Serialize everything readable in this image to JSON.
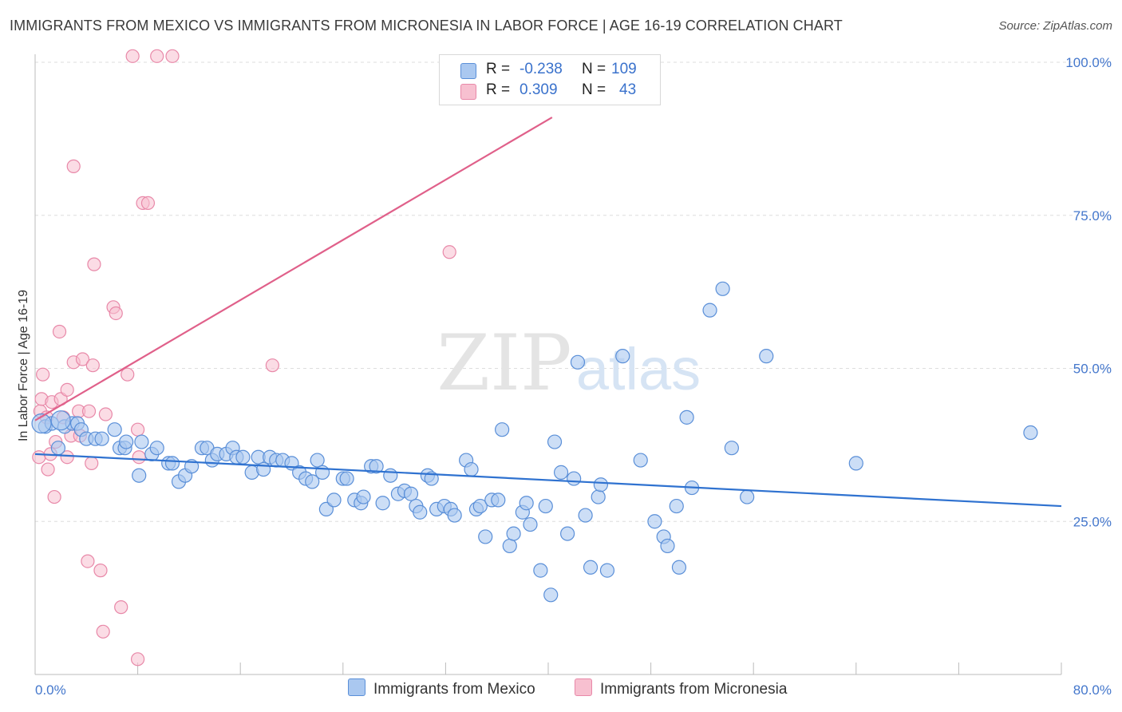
{
  "header": {
    "title": "IMMIGRANTS FROM MEXICO VS IMMIGRANTS FROM MICRONESIA IN LABOR FORCE | AGE 16-19 CORRELATION CHART",
    "source": "Source: ZipAtlas.com"
  },
  "watermark": {
    "zip": "ZIP",
    "atlas": "atlas"
  },
  "legend": {
    "rows": [
      {
        "r_label": "R =",
        "r_value": "-0.238",
        "n_label": "N =",
        "n_value": "109"
      },
      {
        "r_label": "R =",
        "r_value": "0.309",
        "n_label": "N =",
        "n_value": "43"
      }
    ]
  },
  "bottom_legend": {
    "mexico": "Immigrants from Mexico",
    "micronesia": "Immigrants from Micronesia"
  },
  "colors": {
    "mexico_fill": "#aac8f0",
    "mexico_stroke": "#5a8fd8",
    "mexico_line": "#2f72d0",
    "micronesia_fill": "#f7c0d0",
    "micronesia_stroke": "#e888a8",
    "micronesia_line": "#e0608a",
    "tick_label": "#4477cc"
  },
  "chart_data": {
    "type": "scatter",
    "title": "IMMIGRANTS FROM MEXICO VS IMMIGRANTS FROM MICRONESIA IN LABOR FORCE | AGE 16-19 CORRELATION CHART",
    "xlabel": "",
    "ylabel": "In Labor Force | Age 16-19",
    "xlim": [
      0,
      80
    ],
    "ylim": [
      0,
      100
    ],
    "x_tick_labels": [
      "0.0%",
      "80.0%"
    ],
    "y_tick_labels": [
      "25.0%",
      "50.0%",
      "75.0%",
      "100.0%"
    ],
    "y_ticks": [
      25,
      50,
      75,
      100
    ],
    "grid": true,
    "legend_placement": "top-center",
    "series": [
      {
        "name": "Immigrants from Mexico",
        "r": -0.238,
        "n": 109,
        "trend": {
          "x": [
            0,
            80
          ],
          "y": [
            36.0,
            27.5
          ]
        },
        "points": [
          [
            0.8,
            40.5
          ],
          [
            1.3,
            41
          ],
          [
            1.8,
            37
          ],
          [
            2.3,
            40.5
          ],
          [
            2.9,
            41
          ],
          [
            3.3,
            41
          ],
          [
            3.6,
            40
          ],
          [
            4.0,
            38.5
          ],
          [
            4.7,
            38.5
          ],
          [
            5.2,
            38.5
          ],
          [
            6.2,
            40
          ],
          [
            6.6,
            37
          ],
          [
            7.0,
            37
          ],
          [
            7.1,
            38
          ],
          [
            8.3,
            38
          ],
          [
            8.1,
            32.5
          ],
          [
            9.1,
            36
          ],
          [
            9.5,
            37
          ],
          [
            10.4,
            34.5
          ],
          [
            10.7,
            34.5
          ],
          [
            11.2,
            31.5
          ],
          [
            11.7,
            32.5
          ],
          [
            12.2,
            34
          ],
          [
            13.0,
            37
          ],
          [
            13.4,
            37
          ],
          [
            13.8,
            35
          ],
          [
            14.2,
            36
          ],
          [
            14.9,
            36
          ],
          [
            15.4,
            37
          ],
          [
            15.7,
            35.5
          ],
          [
            16.2,
            35.5
          ],
          [
            16.9,
            33
          ],
          [
            17.4,
            35.5
          ],
          [
            17.8,
            33.5
          ],
          [
            18.3,
            35.5
          ],
          [
            18.8,
            35
          ],
          [
            19.3,
            35
          ],
          [
            20.0,
            34.5
          ],
          [
            20.6,
            33
          ],
          [
            21.1,
            32
          ],
          [
            21.6,
            31.5
          ],
          [
            22.0,
            35
          ],
          [
            22.4,
            33
          ],
          [
            22.7,
            27
          ],
          [
            23.3,
            28.5
          ],
          [
            24.0,
            32
          ],
          [
            24.3,
            32
          ],
          [
            24.9,
            28.5
          ],
          [
            25.4,
            28
          ],
          [
            25.6,
            29
          ],
          [
            26.2,
            34
          ],
          [
            26.6,
            34
          ],
          [
            27.1,
            28
          ],
          [
            27.7,
            32.5
          ],
          [
            28.3,
            29.5
          ],
          [
            28.8,
            30
          ],
          [
            29.3,
            29.5
          ],
          [
            29.7,
            27.5
          ],
          [
            30.0,
            26.5
          ],
          [
            30.6,
            32.5
          ],
          [
            30.9,
            32
          ],
          [
            31.3,
            27
          ],
          [
            31.9,
            27.5
          ],
          [
            32.4,
            27
          ],
          [
            32.7,
            26
          ],
          [
            33.6,
            35
          ],
          [
            34.0,
            33.5
          ],
          [
            34.4,
            27
          ],
          [
            34.7,
            27.5
          ],
          [
            35.1,
            22.5
          ],
          [
            35.6,
            28.5
          ],
          [
            36.1,
            28.5
          ],
          [
            36.4,
            40
          ],
          [
            37.0,
            21
          ],
          [
            37.3,
            23
          ],
          [
            38.0,
            26.5
          ],
          [
            38.3,
            28
          ],
          [
            38.6,
            24.5
          ],
          [
            39.4,
            17
          ],
          [
            39.8,
            27.5
          ],
          [
            40.2,
            13
          ],
          [
            40.5,
            38
          ],
          [
            41.0,
            33
          ],
          [
            41.5,
            23
          ],
          [
            42.0,
            32
          ],
          [
            42.3,
            51
          ],
          [
            42.9,
            26
          ],
          [
            43.3,
            17.5
          ],
          [
            43.9,
            29
          ],
          [
            44.1,
            31
          ],
          [
            44.6,
            17
          ],
          [
            45.8,
            52
          ],
          [
            47.2,
            35
          ],
          [
            48.3,
            25
          ],
          [
            49.0,
            22.5
          ],
          [
            49.3,
            21
          ],
          [
            50.0,
            27.5
          ],
          [
            50.2,
            17.5
          ],
          [
            50.8,
            42
          ],
          [
            51.2,
            30.5
          ],
          [
            52.6,
            59.5
          ],
          [
            53.6,
            63
          ],
          [
            54.3,
            37
          ],
          [
            55.5,
            29
          ],
          [
            57.0,
            52
          ],
          [
            64.0,
            34.5
          ],
          [
            77.6,
            39.5
          ],
          [
            0.5,
            41
          ],
          [
            2.0,
            41.5
          ]
        ]
      },
      {
        "name": "Immigrants from Micronesia",
        "r": 0.309,
        "n": 43,
        "trend": {
          "x": [
            0,
            40.3
          ],
          "y": [
            41.5,
            91.0
          ]
        },
        "points": [
          [
            0.3,
            35.5
          ],
          [
            0.4,
            43
          ],
          [
            0.5,
            45
          ],
          [
            0.6,
            49
          ],
          [
            0.9,
            42
          ],
          [
            1.0,
            33.5
          ],
          [
            1.2,
            36
          ],
          [
            1.3,
            44.5
          ],
          [
            1.5,
            29
          ],
          [
            1.6,
            38
          ],
          [
            1.9,
            56
          ],
          [
            2.0,
            45
          ],
          [
            2.2,
            42
          ],
          [
            2.5,
            46.5
          ],
          [
            2.5,
            35.5
          ],
          [
            2.8,
            39
          ],
          [
            3.0,
            51
          ],
          [
            3.0,
            83
          ],
          [
            3.4,
            43
          ],
          [
            3.5,
            39
          ],
          [
            3.7,
            51.5
          ],
          [
            4.1,
            18.5
          ],
          [
            4.2,
            43
          ],
          [
            4.4,
            34.5
          ],
          [
            4.5,
            50.5
          ],
          [
            4.6,
            67
          ],
          [
            5.1,
            17
          ],
          [
            5.3,
            7
          ],
          [
            5.5,
            42.5
          ],
          [
            6.1,
            60
          ],
          [
            6.3,
            59
          ],
          [
            6.7,
            11
          ],
          [
            7.2,
            49
          ],
          [
            7.6,
            101
          ],
          [
            8.0,
            40
          ],
          [
            8.0,
            2.5
          ],
          [
            8.1,
            35.5
          ],
          [
            8.4,
            77
          ],
          [
            8.8,
            77
          ],
          [
            9.5,
            101
          ],
          [
            10.7,
            101
          ],
          [
            18.5,
            50.5
          ],
          [
            32.3,
            69
          ]
        ]
      }
    ]
  }
}
